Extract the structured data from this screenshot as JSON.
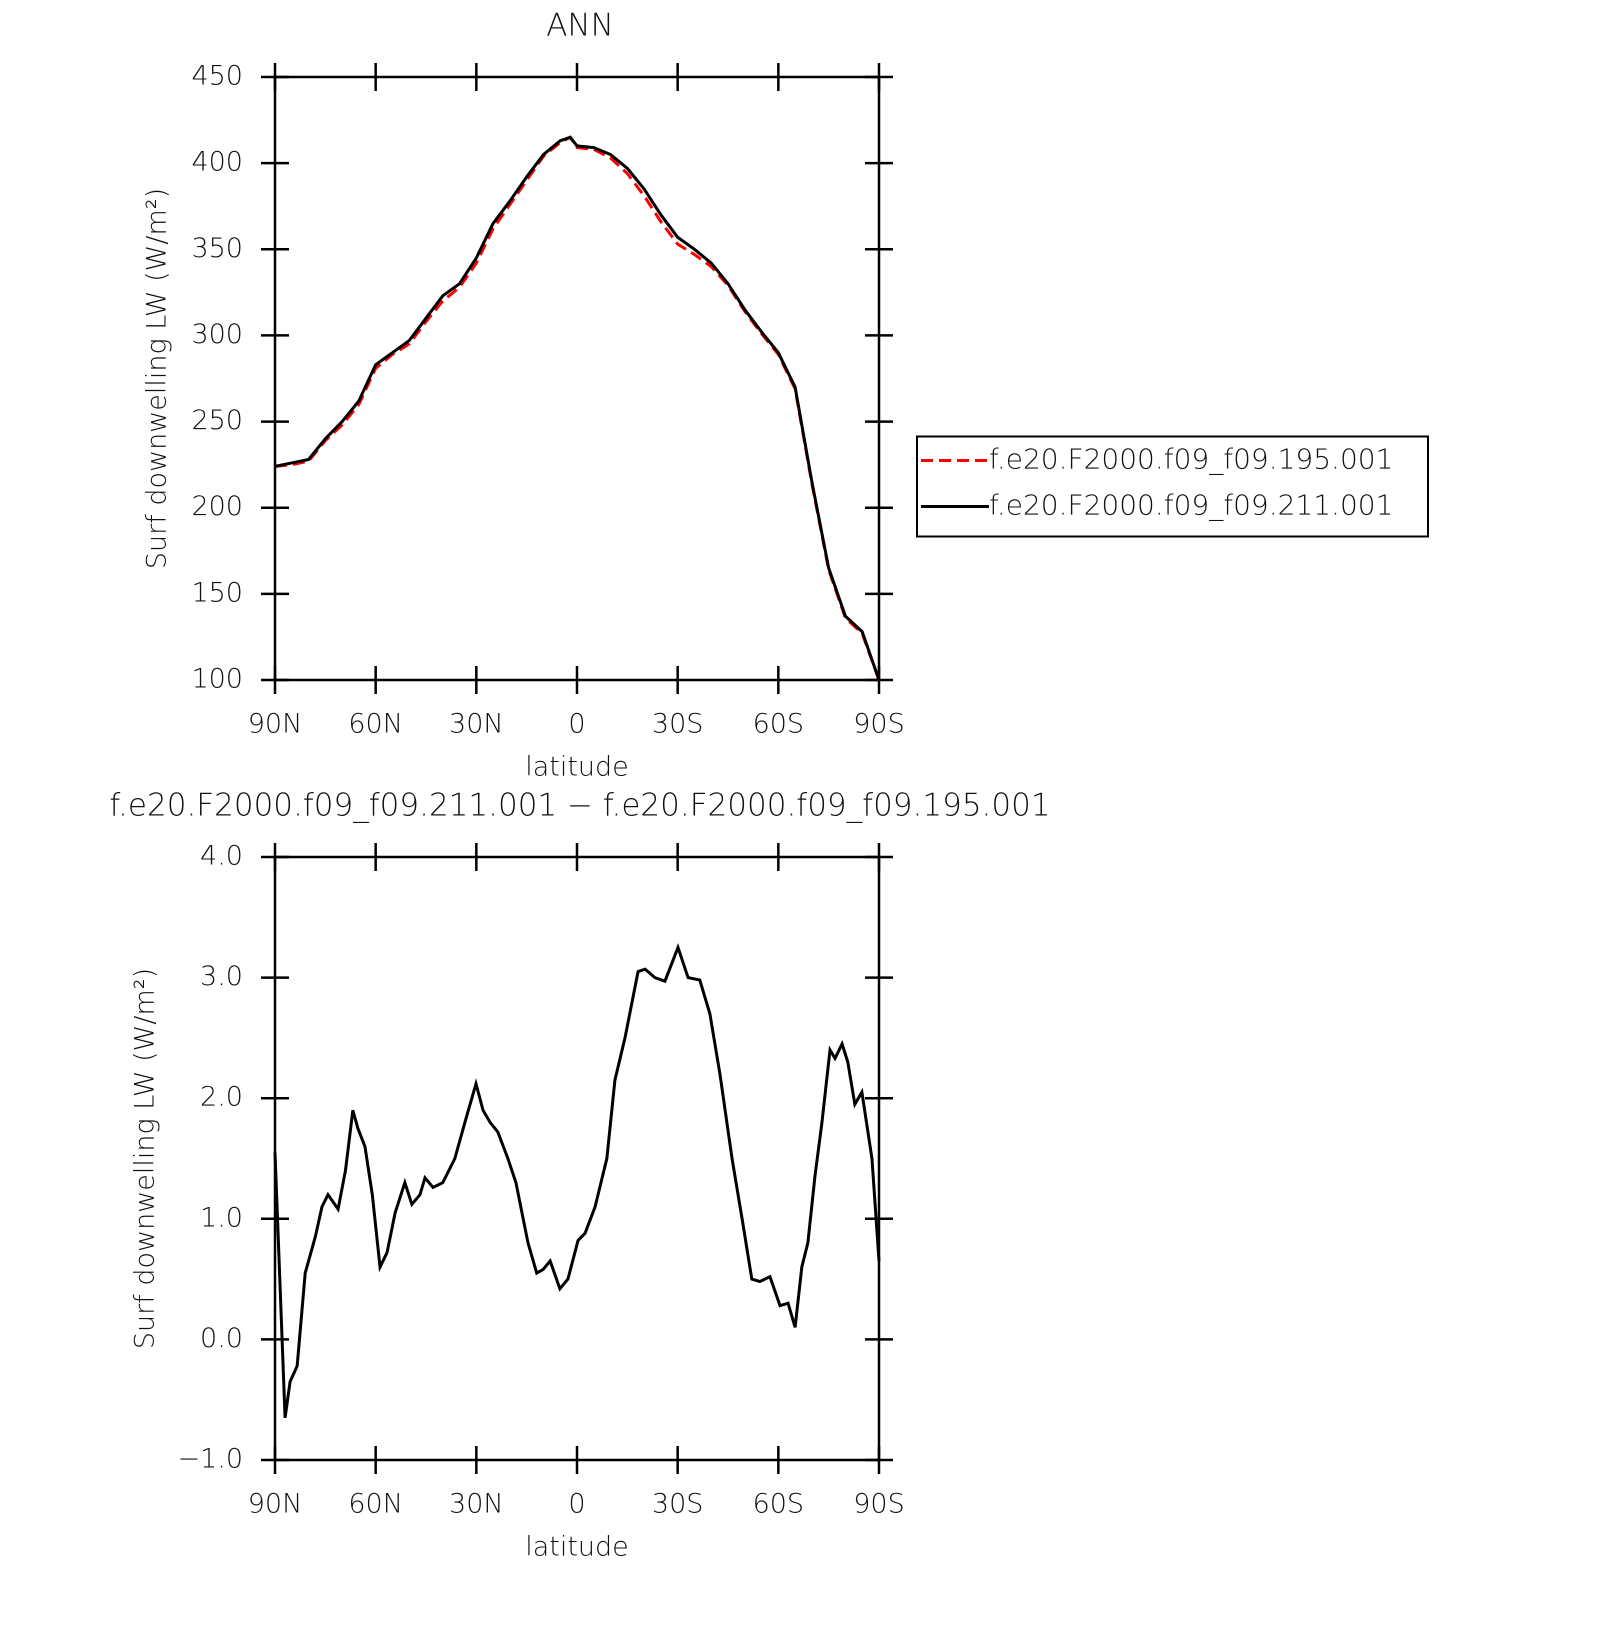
{
  "chart_data": [
    {
      "type": "line",
      "title": "ANN",
      "x_label": "latitude",
      "y_label": "Surf downwelling LW (W/m²)",
      "x": [
        90,
        85,
        80,
        75,
        70,
        65,
        60,
        55,
        50,
        45,
        40,
        35,
        30,
        25,
        20,
        15,
        10,
        5,
        2,
        0,
        -5,
        -10,
        -15,
        -20,
        -25,
        -30,
        -35,
        -40,
        -45,
        -50,
        -55,
        -60,
        -65,
        -70,
        -75,
        -80,
        -85,
        -90
      ],
      "xlim": [
        90,
        -90
      ],
      "xticks": [
        {
          "value": 90,
          "label": "90N"
        },
        {
          "value": 60,
          "label": "60N"
        },
        {
          "value": 30,
          "label": "30N"
        },
        0,
        {
          "value": -30,
          "label": "30S"
        },
        {
          "value": -60,
          "label": "60S"
        },
        {
          "value": -90,
          "label": "90S"
        }
      ],
      "ylim": [
        100,
        450
      ],
      "yticks": [
        100,
        150,
        200,
        250,
        300,
        350,
        400,
        450
      ],
      "legend": "right",
      "series": [
        {
          "name": "f.e20.F2000.f09_f09.195.001",
          "color": "#ff0000",
          "linestyle": "dashed",
          "values": [
            224,
            225,
            227,
            239,
            248,
            260,
            281,
            289,
            295,
            308,
            320,
            328,
            342,
            362,
            376,
            390,
            404,
            412,
            415,
            409,
            408,
            403,
            394,
            381,
            366,
            353,
            347,
            340,
            329,
            314,
            301,
            289,
            269,
            214,
            164,
            136,
            127,
            100
          ]
        },
        {
          "name": "f.e20.F2000.f09_f09.211.001",
          "color": "#000000",
          "linestyle": "solid",
          "values": [
            224,
            226,
            228,
            240,
            250,
            262,
            283,
            290,
            297,
            310,
            323,
            330,
            345,
            365,
            378,
            392,
            405,
            413,
            415,
            410,
            409,
            405,
            397,
            385,
            370,
            357,
            350,
            342,
            330,
            315,
            302,
            290,
            270,
            215,
            165,
            137,
            128,
            100
          ]
        }
      ]
    },
    {
      "type": "line",
      "title": "f.e20.F2000.f09_f09.211.001 − f.e20.F2000.f09_f09.195.001",
      "x_label": "latitude",
      "y_label": "Surf downwelling LW (W/m²)",
      "x": [
        90,
        87,
        85.5,
        83.4,
        81,
        78,
        76,
        74.2,
        71.2,
        69,
        66.8,
        65.3,
        63.2,
        61,
        58.7,
        56.6,
        54.2,
        51.3,
        49.2,
        46.8,
        45.3,
        42.9,
        40,
        36.4,
        33.4,
        30.1,
        28,
        25.9,
        23.6,
        20.6,
        18.2,
        14.6,
        12,
        10.1,
        8,
        5.1,
        2.7,
        -0.3,
        -2.4,
        -5.4,
        -8.9,
        -11.3,
        -14.3,
        -18.2,
        -20.3,
        -23.2,
        -26.2,
        -30.1,
        -33.1,
        -36.6,
        -39.6,
        -42.6,
        -46.2,
        -49.2,
        -52.1,
        -54.5,
        -57.5,
        -60.5,
        -62.9,
        -65,
        -67,
        -68.8,
        -70.9,
        -73,
        -75.4,
        -76.9,
        -79,
        -80.7,
        -82.8,
        -84.9,
        -87.9,
        -90
      ],
      "xlim": [
        90,
        -90
      ],
      "xticks": [
        {
          "value": 90,
          "label": "90N"
        },
        {
          "value": 60,
          "label": "60N"
        },
        {
          "value": 30,
          "label": "30N"
        },
        0,
        {
          "value": -30,
          "label": "30S"
        },
        {
          "value": -60,
          "label": "60S"
        },
        {
          "value": -90,
          "label": "90S"
        }
      ],
      "ylim": [
        -1,
        4
      ],
      "yticks": [
        {
          "value": -1,
          "label": "−1.0"
        },
        {
          "value": 0,
          "label": "0.0"
        },
        {
          "value": 1,
          "label": "1.0"
        },
        {
          "value": 2,
          "label": "2.0"
        },
        {
          "value": 3,
          "label": "3.0"
        },
        {
          "value": 4,
          "label": "4.0"
        }
      ],
      "series": [
        {
          "color": "#000000",
          "linestyle": "solid",
          "values": [
            1.55,
            -0.65,
            -0.35,
            -0.22,
            0.55,
            0.85,
            1.1,
            1.2,
            1.08,
            1.4,
            1.9,
            1.75,
            1.6,
            1.2,
            0.6,
            0.72,
            1.05,
            1.3,
            1.12,
            1.2,
            1.34,
            1.26,
            1.3,
            1.5,
            1.8,
            2.12,
            1.9,
            1.8,
            1.72,
            1.5,
            1.3,
            0.8,
            0.55,
            0.58,
            0.65,
            0.42,
            0.5,
            0.82,
            0.88,
            1.1,
            1.5,
            2.15,
            2.5,
            3.05,
            3.07,
            3.0,
            2.97,
            3.25,
            3.0,
            2.98,
            2.7,
            2.2,
            1.5,
            1.0,
            0.5,
            0.48,
            0.52,
            0.28,
            0.3,
            0.1,
            0.6,
            0.8,
            1.35,
            1.8,
            2.4,
            2.33,
            2.45,
            2.3,
            1.95,
            2.05,
            1.5,
            0.65
          ]
        }
      ]
    }
  ]
}
